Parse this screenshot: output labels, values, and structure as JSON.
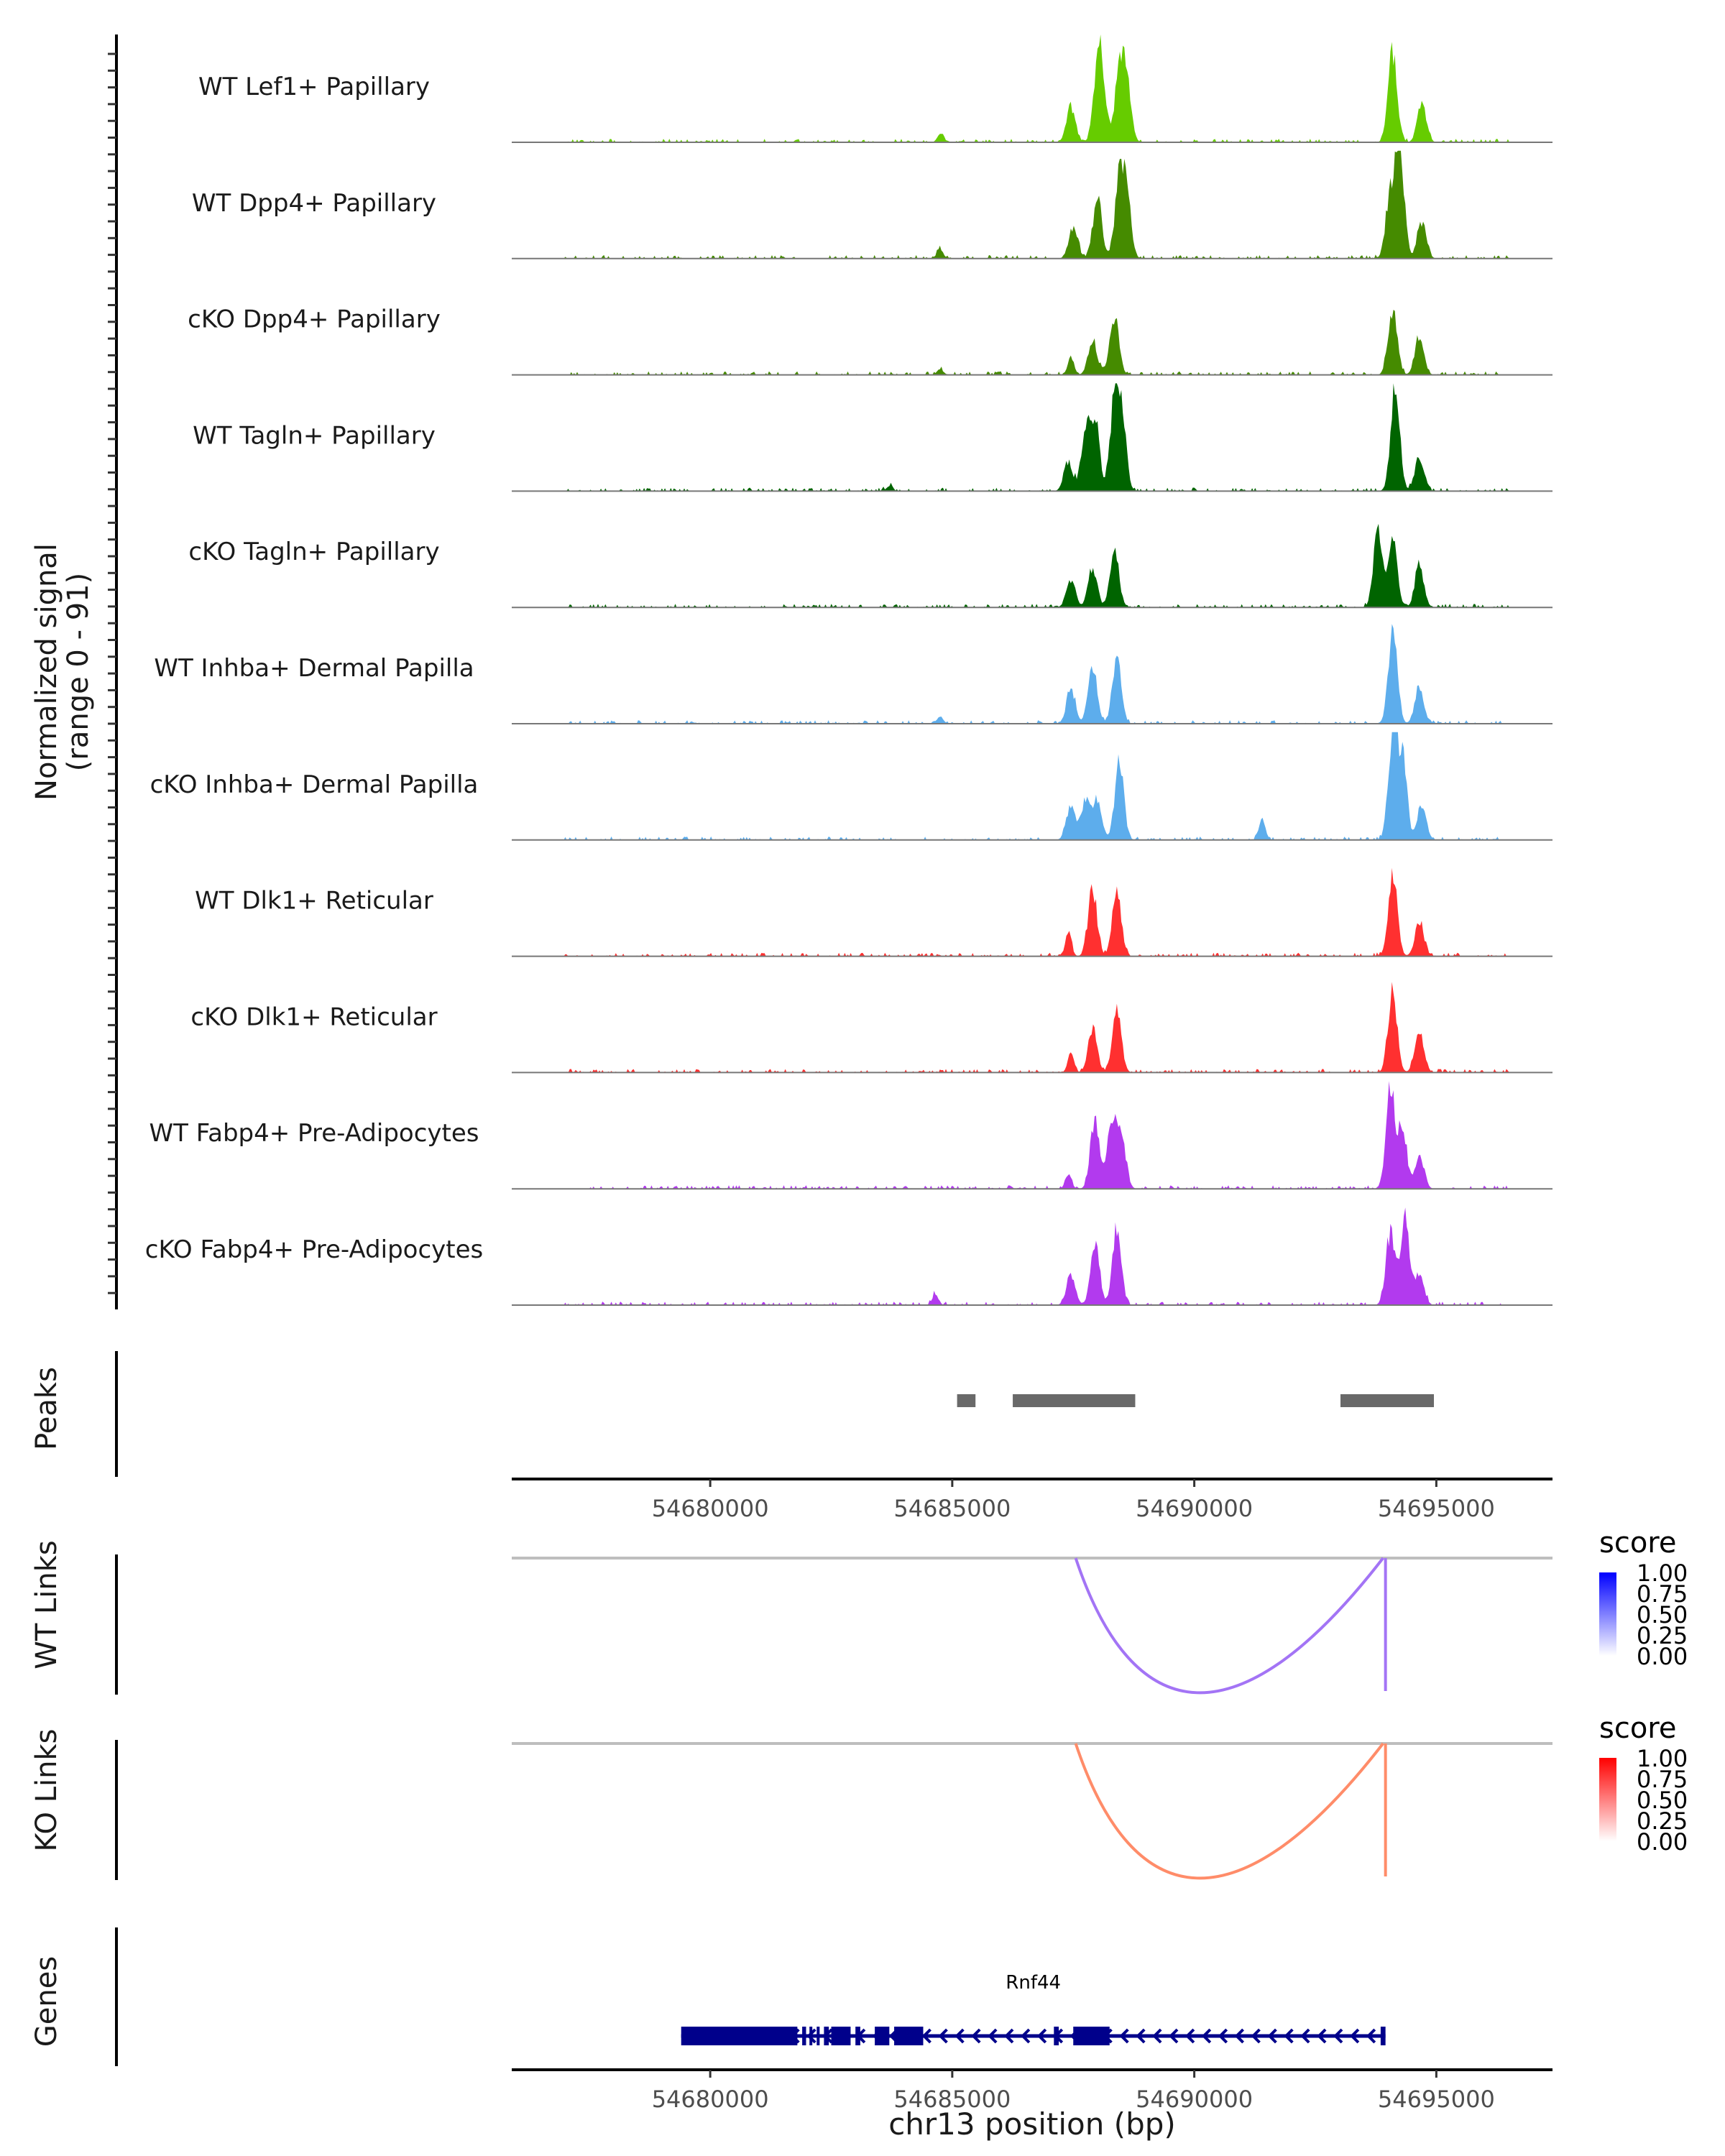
{
  "chart_data": {
    "type": "area",
    "title": "",
    "xlabel": "chr13 position (bp)",
    "ylabel": "Normalized signal\n(range 0 - 91)",
    "ylabel_lines": [
      "Normalized signal",
      "(range 0 - 91)"
    ],
    "xlim": [
      54675900,
      54697400
    ],
    "ylim": [
      0,
      91
    ],
    "x_ticks": [
      54680000,
      54685000,
      54690000,
      54695000
    ],
    "x_tick_labels": [
      "54680000",
      "54685000",
      "54690000",
      "54695000"
    ],
    "coverage_tracks": [
      {
        "name": "WT Lef1+ Papillary",
        "color": "#66CC00",
        "peaks": [
          [
            54687450,
            30
          ],
          [
            54688000,
            50
          ],
          [
            54688100,
            42
          ],
          [
            54688450,
            58
          ],
          [
            54688600,
            48
          ],
          [
            54694100,
            75
          ],
          [
            54694700,
            32
          ],
          [
            54684750,
            6
          ]
        ]
      },
      {
        "name": "WT Dpp4+ Papillary",
        "color": "#458B00",
        "peaks": [
          [
            54687500,
            27
          ],
          [
            54688000,
            52
          ],
          [
            54688450,
            64
          ],
          [
            54688600,
            48
          ],
          [
            54694050,
            55
          ],
          [
            54694250,
            88
          ],
          [
            54694700,
            30
          ],
          [
            54684750,
            8
          ]
        ]
      },
      {
        "name": "cKO Dpp4+ Papillary",
        "color": "#458B00",
        "peaks": [
          [
            54687450,
            16
          ],
          [
            54687900,
            30
          ],
          [
            54688350,
            50
          ],
          [
            54694100,
            56
          ],
          [
            54694650,
            30
          ],
          [
            54684750,
            5
          ]
        ]
      },
      {
        "name": "WT Tagln+ Papillary",
        "color": "#006400",
        "peaks": [
          [
            54687400,
            25
          ],
          [
            54687750,
            45
          ],
          [
            54687950,
            60
          ],
          [
            54688350,
            70
          ],
          [
            54688500,
            62
          ],
          [
            54694150,
            91
          ],
          [
            54694650,
            30
          ],
          [
            54683700,
            4
          ]
        ]
      },
      {
        "name": "cKO Tagln+ Papillary",
        "color": "#006400",
        "peaks": [
          [
            54687450,
            24
          ],
          [
            54687900,
            33
          ],
          [
            54688350,
            48
          ],
          [
            54693800,
            68
          ],
          [
            54694100,
            58
          ],
          [
            54694650,
            35
          ]
        ]
      },
      {
        "name": "WT Inhba+ Dermal Papilla",
        "color": "#5DADEC",
        "peaks": [
          [
            54687450,
            28
          ],
          [
            54687900,
            48
          ],
          [
            54688400,
            55
          ],
          [
            54694100,
            78
          ],
          [
            54694650,
            32
          ],
          [
            54684750,
            6
          ]
        ]
      },
      {
        "name": "cKO Inhba+ Dermal Papilla",
        "color": "#5DADEC",
        "peaks": [
          [
            54687450,
            28
          ],
          [
            54687750,
            34
          ],
          [
            54688000,
            33
          ],
          [
            54688450,
            65
          ],
          [
            54691400,
            16
          ],
          [
            54694100,
            90
          ],
          [
            54694300,
            66
          ],
          [
            54694700,
            30
          ]
        ]
      },
      {
        "name": "WT Dlk1+ Reticular",
        "color": "#FF3030",
        "peaks": [
          [
            54687400,
            20
          ],
          [
            54687900,
            55
          ],
          [
            54688400,
            55
          ],
          [
            54694100,
            70
          ],
          [
            54694650,
            30
          ]
        ]
      },
      {
        "name": "cKO Dlk1+ Reticular",
        "color": "#FF3030",
        "peaks": [
          [
            54687450,
            16
          ],
          [
            54687900,
            38
          ],
          [
            54688400,
            52
          ],
          [
            54694100,
            68
          ],
          [
            54694650,
            36
          ]
        ]
      },
      {
        "name": "WT Fabp4+ Pre-Adipocytes",
        "color": "#B23AEE",
        "peaks": [
          [
            54687400,
            12
          ],
          [
            54687950,
            60
          ],
          [
            54688300,
            60
          ],
          [
            54688500,
            40
          ],
          [
            54694050,
            86
          ],
          [
            54694300,
            50
          ],
          [
            54694650,
            30
          ]
        ]
      },
      {
        "name": "cKO Fabp4+ Pre-Adipocytes",
        "color": "#B23AEE",
        "peaks": [
          [
            54687450,
            24
          ],
          [
            54687950,
            50
          ],
          [
            54688400,
            65
          ],
          [
            54694050,
            60
          ],
          [
            54694350,
            70
          ],
          [
            54694650,
            28
          ],
          [
            54684650,
            10
          ]
        ]
      }
    ],
    "peaks_track": {
      "label": "Peaks",
      "color": "#696969",
      "regions": [
        [
          54685100,
          54685480
        ],
        [
          54686250,
          54688780
        ],
        [
          54693020,
          54694950
        ]
      ]
    },
    "links_tracks": [
      {
        "label": "WT Links",
        "legend_title": "score",
        "low_color": "#FFFFFF",
        "high_color": "#0000FF",
        "line_color": "#A374F5",
        "links": [
          {
            "start": 54687550,
            "end": 54693900,
            "score": 0.5
          },
          {
            "start": 54693900,
            "end": 54693950,
            "score": 0.5
          }
        ]
      },
      {
        "label": "KO Links",
        "legend_title": "score",
        "low_color": "#FFFFFF",
        "high_color": "#FF0000",
        "line_color": "#FF8C69",
        "links": [
          {
            "start": 54687550,
            "end": 54693900,
            "score": 0.5
          },
          {
            "start": 54693900,
            "end": 54693950,
            "score": 0.5
          }
        ]
      }
    ],
    "legend_ticks": [
      "1.00",
      "0.75",
      "0.50",
      "0.25",
      "0.00"
    ],
    "genes_track": {
      "label": "Genes",
      "color": "#00008B",
      "genes": [
        {
          "name": "Rnf44",
          "start": 54679400,
          "end": 54693950,
          "strand": "-",
          "exons": [
            [
              54679400,
              54681800
            ],
            [
              54681900,
              54681980
            ],
            [
              54682050,
              54682100
            ],
            [
              54682200,
              54682260
            ],
            [
              54682350,
              54682450
            ],
            [
              54682500,
              54682900
            ],
            [
              54683000,
              54683100
            ],
            [
              54683400,
              54683700
            ],
            [
              54683800,
              54684400
            ],
            [
              54687100,
              54687200
            ],
            [
              54687500,
              54688250
            ],
            [
              54693850,
              54693950
            ]
          ]
        }
      ]
    }
  }
}
